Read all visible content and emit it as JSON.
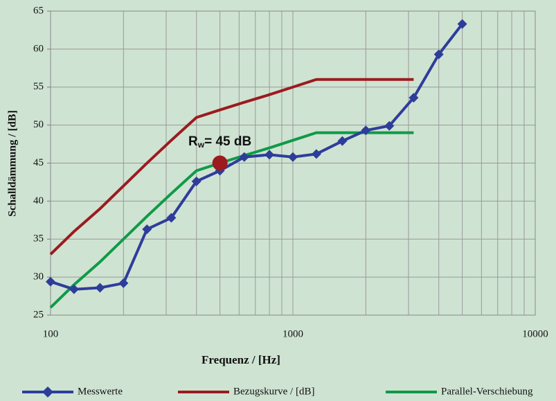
{
  "chart_data": {
    "type": "line",
    "xlabel": "Frequenz / [Hz]",
    "ylabel": "Schalldämmung / [dB]",
    "xscale": "log",
    "xlim": [
      100,
      10000
    ],
    "xticks": [
      100,
      1000,
      10000
    ],
    "xminorticks": [
      200,
      300,
      400,
      500,
      600,
      700,
      800,
      900,
      2000,
      3000,
      4000,
      5000,
      6000,
      7000,
      8000,
      9000
    ],
    "ylim": [
      25,
      65
    ],
    "yticks": [
      25,
      30,
      35,
      40,
      45,
      50,
      55,
      60,
      65
    ],
    "grid": true,
    "legend": "bottom",
    "series": [
      {
        "name": "Messwerte",
        "color": "#2e3d9a",
        "marker": "diamond",
        "x": [
          100,
          125,
          160,
          200,
          250,
          315,
          400,
          500,
          630,
          800,
          1000,
          1250,
          1600,
          2000,
          2500,
          3150,
          4000,
          5000
        ],
        "values": [
          29.4,
          28.4,
          28.6,
          29.2,
          36.3,
          37.8,
          42.6,
          44.0,
          45.8,
          46.1,
          45.8,
          46.2,
          47.9,
          49.3,
          49.9,
          53.6,
          59.3,
          63.3
        ]
      },
      {
        "name": "Bezugskurve / [dB]",
        "color": "#9b1b1f",
        "x": [
          100,
          125,
          160,
          200,
          250,
          315,
          400,
          500,
          630,
          800,
          1000,
          1250,
          1600,
          2000,
          2500,
          3150
        ],
        "values": [
          33,
          36,
          39,
          42,
          45,
          48,
          51,
          52,
          53,
          54,
          55,
          56,
          56,
          56,
          56,
          56
        ]
      },
      {
        "name": "Parallel-Verschiebung",
        "color": "#0f9a48",
        "x": [
          100,
          125,
          160,
          200,
          250,
          315,
          400,
          500,
          630,
          800,
          1000,
          1250,
          1600,
          2000,
          2500,
          3150
        ],
        "values": [
          26,
          29,
          32,
          35,
          38,
          41,
          44,
          45,
          46,
          47,
          48,
          49,
          49,
          49,
          49,
          49
        ]
      }
    ],
    "annotation": {
      "text": "R",
      "subscript": "w",
      "rest": "= 45 dB",
      "x": 500,
      "y": 45,
      "color": "#9b1b1f"
    }
  }
}
